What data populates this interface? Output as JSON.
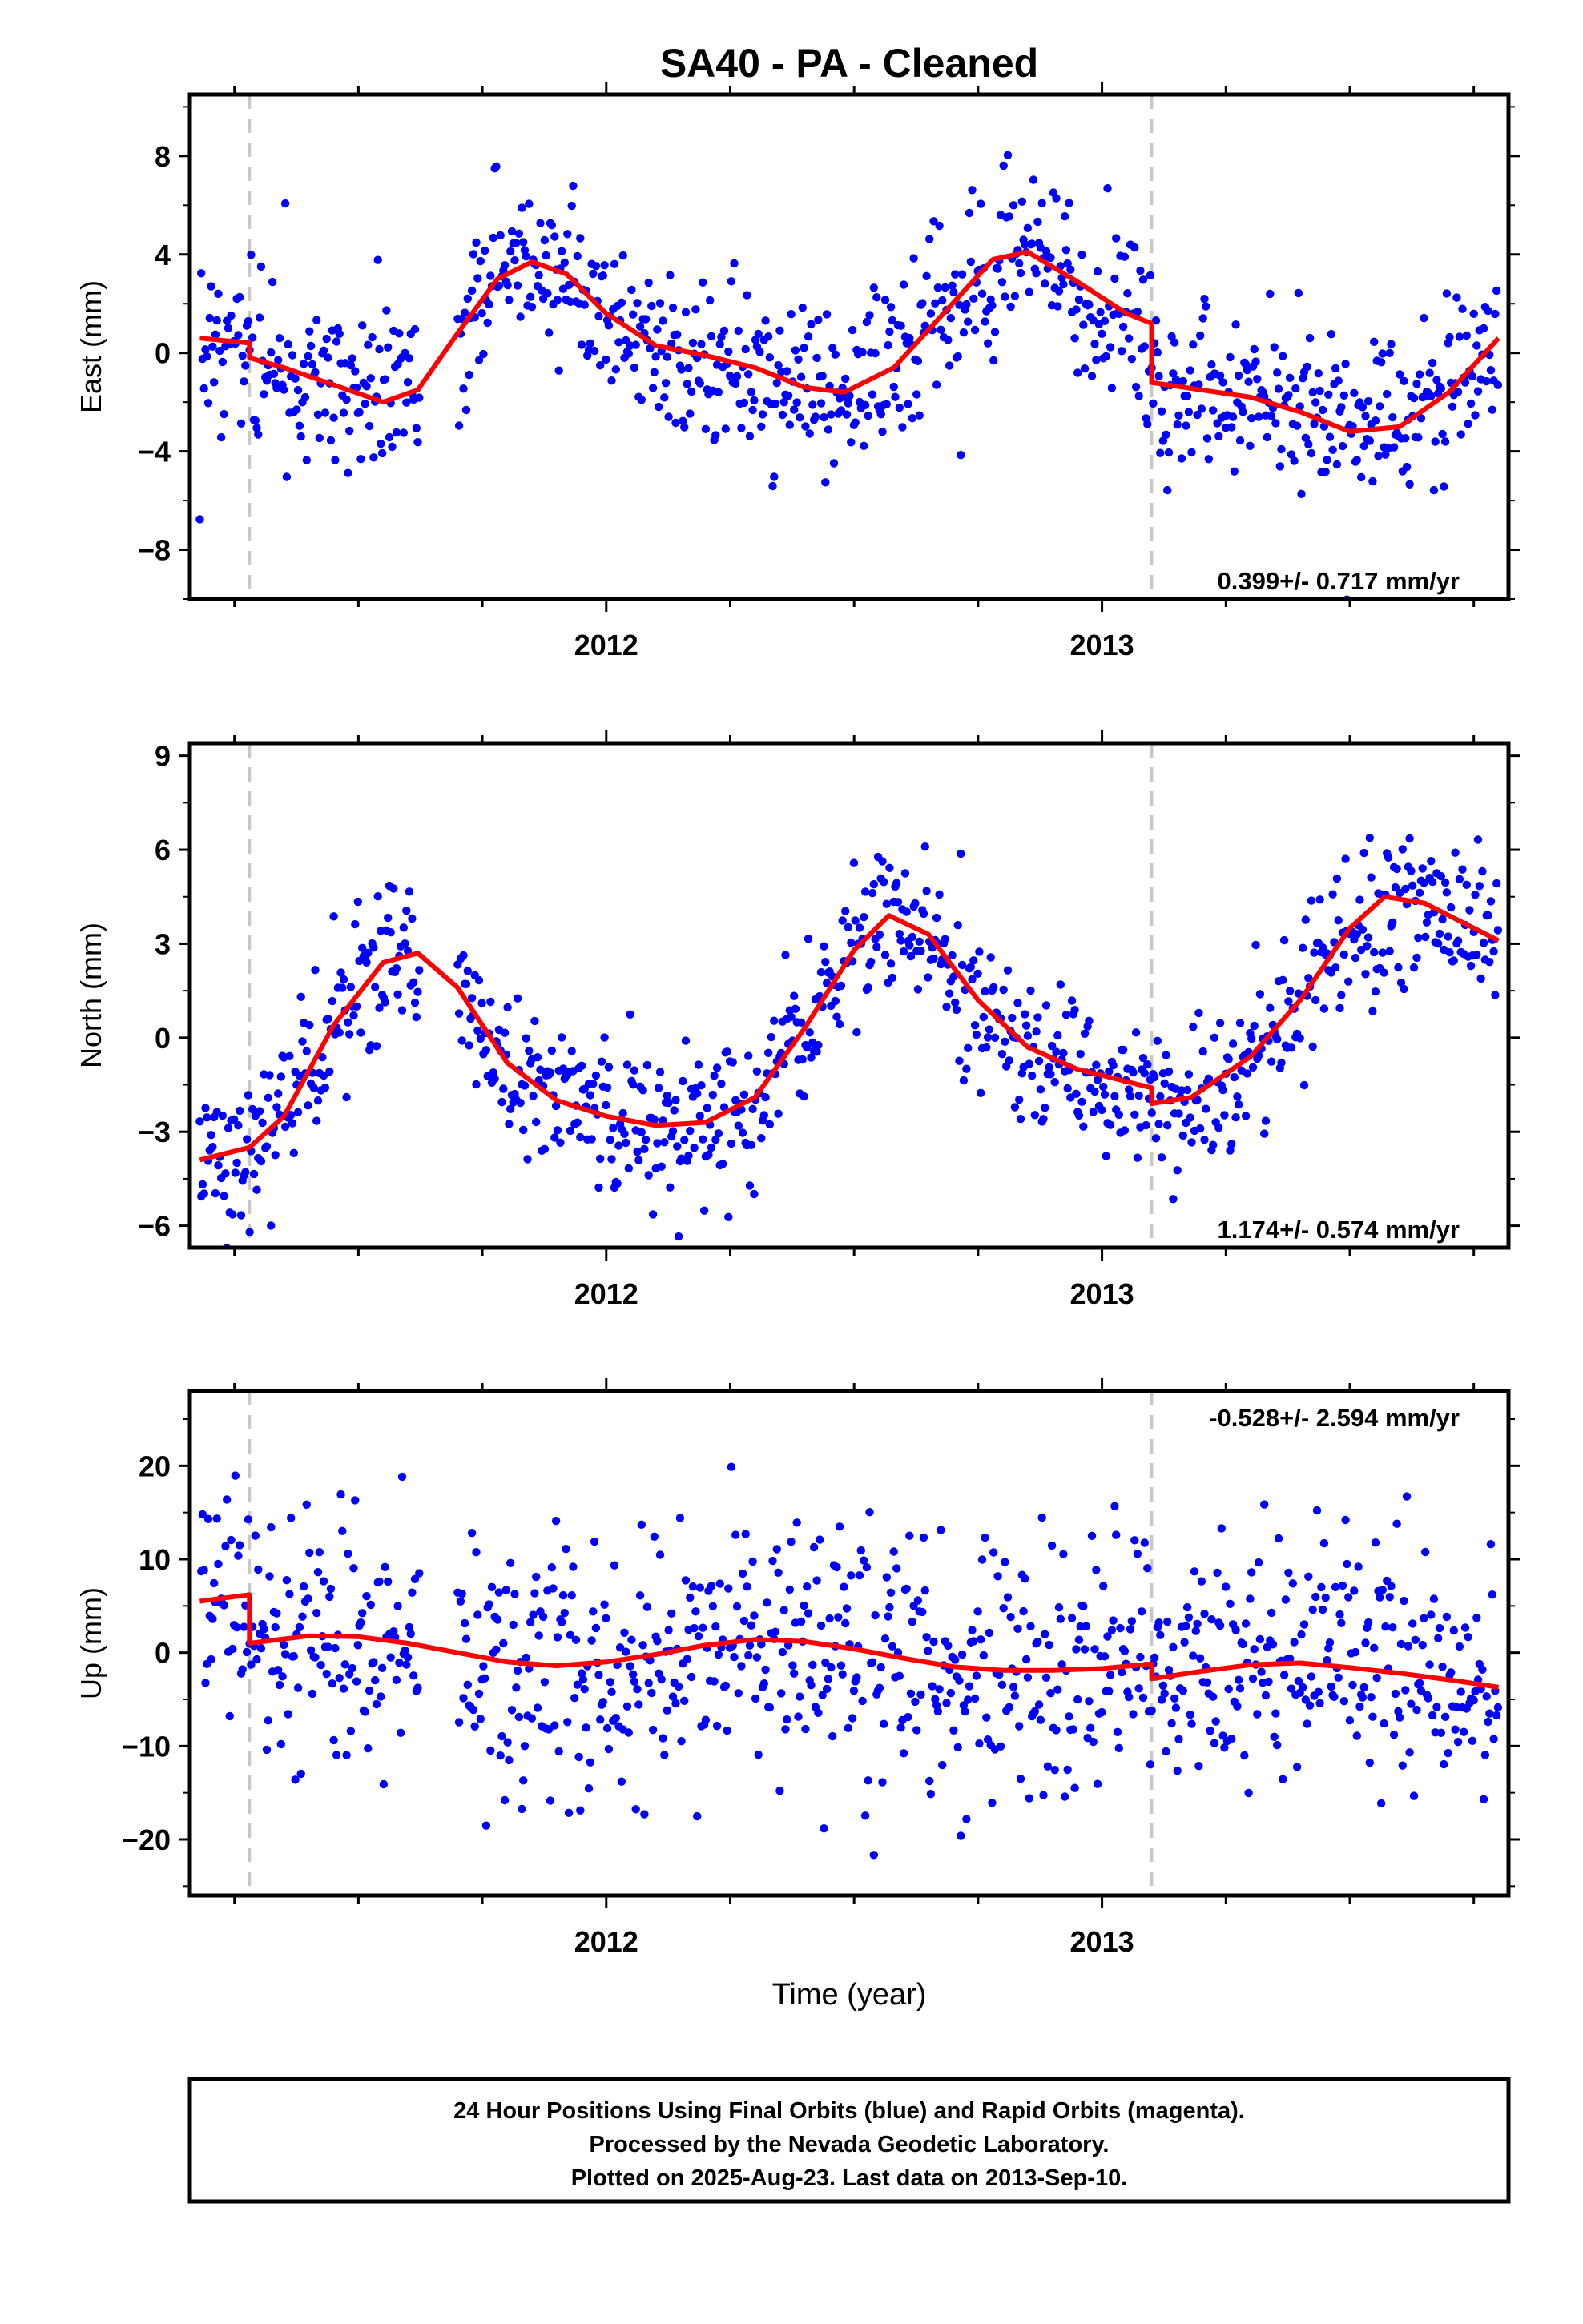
{
  "title": "SA40  - PA - Cleaned",
  "colors": {
    "points": "#0000ff",
    "fit": "#ff0000",
    "break_lines": "#c8c8c8",
    "frame": "#000000"
  },
  "chart_data": [
    {
      "type": "scatter",
      "component": "east",
      "ylabel": "East (mm)",
      "xlabel": "",
      "ylim": [
        -10,
        10.5
      ],
      "yticks": [
        -8,
        -4,
        0,
        4,
        8
      ],
      "xlim": [
        2011.16,
        2013.82
      ],
      "xticks": [
        2012,
        2013
      ],
      "rate_label": "0.399+/- 0.717 mm/yr",
      "rate_position": "bottom-right",
      "breaks": [
        2011.28,
        2013.1
      ],
      "seasonal_amp": 2.9,
      "seasonal_phase": -0.0,
      "trend_mm_per_yr": 0.399,
      "offset_mm": -1.6,
      "scatter_sigma": 1.8,
      "fit": {
        "x": [
          2011.18,
          2011.28,
          2011.28,
          2011.35,
          2011.45,
          2011.55,
          2011.62,
          2011.7,
          2011.78,
          2011.85,
          2011.92,
          2012.0,
          2012.1,
          2012.2,
          2012.3,
          2012.4,
          2012.48,
          2012.58,
          2012.68,
          2012.78,
          2012.85,
          2012.95,
          2013.05,
          2013.1,
          2013.1,
          2013.2,
          2013.3,
          2013.4,
          2013.5,
          2013.6,
          2013.7,
          2013.8
        ],
        "y": [
          0.6,
          0.4,
          -0.2,
          -0.6,
          -1.3,
          -2.0,
          -1.5,
          0.8,
          3.0,
          3.7,
          3.2,
          1.6,
          0.3,
          -0.1,
          -0.6,
          -1.4,
          -1.6,
          -0.6,
          1.6,
          3.8,
          4.1,
          2.9,
          1.6,
          1.2,
          -1.2,
          -1.5,
          -1.8,
          -2.4,
          -3.2,
          -3.0,
          -1.6,
          0.6
        ]
      }
    },
    {
      "type": "scatter",
      "component": "north",
      "ylabel": "North (mm)",
      "xlabel": "",
      "ylim": [
        -6.7,
        9.4
      ],
      "yticks": [
        -6,
        -3,
        0,
        3,
        6,
        9
      ],
      "xlim": [
        2011.16,
        2013.82
      ],
      "xticks": [
        2012,
        2013
      ],
      "rate_label": "1.174+/- 0.574 mm/yr",
      "rate_position": "bottom-right",
      "breaks": [
        2011.28,
        2013.1
      ],
      "seasonal_amp": 3.3,
      "seasonal_phase": 0.35,
      "trend_mm_per_yr": 1.174,
      "offset_mm": -1.5,
      "scatter_sigma": 1.2,
      "fit": {
        "x": [
          2011.18,
          2011.28,
          2011.35,
          2011.45,
          2011.55,
          2011.62,
          2011.7,
          2011.8,
          2011.9,
          2012.0,
          2012.1,
          2012.2,
          2012.3,
          2012.4,
          2012.5,
          2012.57,
          2012.65,
          2012.75,
          2012.85,
          2012.95,
          2013.05,
          2013.1,
          2013.1,
          2013.18,
          2013.3,
          2013.4,
          2013.5,
          2013.57,
          2013.65,
          2013.8
        ],
        "y": [
          -3.9,
          -3.5,
          -2.5,
          0.4,
          2.4,
          2.7,
          1.6,
          -0.8,
          -2.0,
          -2.5,
          -2.8,
          -2.7,
          -1.9,
          0.3,
          2.8,
          3.9,
          3.3,
          1.2,
          -0.3,
          -1.0,
          -1.4,
          -1.6,
          -2.1,
          -1.9,
          -0.6,
          1.2,
          3.5,
          4.5,
          4.3,
          3.1
        ]
      }
    },
    {
      "type": "scatter",
      "component": "up",
      "ylabel": "Up (mm)",
      "xlabel": "Time (year)",
      "ylim": [
        -26,
        28
      ],
      "yticks": [
        -20,
        -10,
        0,
        10,
        20
      ],
      "xlim": [
        2011.16,
        2013.82
      ],
      "xticks": [
        2012,
        2013
      ],
      "rate_label": "-0.528+/- 2.594 mm/yr",
      "rate_position": "top-right",
      "breaks": [
        2011.28,
        2013.1
      ],
      "seasonal_amp": 1.6,
      "seasonal_phase": 0.1,
      "trend_mm_per_yr": -0.528,
      "offset_mm": 0.0,
      "scatter_sigma": 7.0,
      "fit": {
        "x": [
          2011.18,
          2011.28,
          2011.28,
          2011.4,
          2011.5,
          2011.6,
          2011.7,
          2011.8,
          2011.9,
          2012.0,
          2012.1,
          2012.2,
          2012.3,
          2012.4,
          2012.5,
          2012.6,
          2012.7,
          2012.8,
          2012.9,
          2013.0,
          2013.1,
          2013.1,
          2013.2,
          2013.3,
          2013.4,
          2013.5,
          2013.6,
          2013.7,
          2013.8
        ],
        "y": [
          5.5,
          6.2,
          1.0,
          1.8,
          1.7,
          1.0,
          0.0,
          -1.0,
          -1.4,
          -1.0,
          -0.2,
          0.8,
          1.4,
          1.2,
          0.4,
          -0.6,
          -1.5,
          -1.9,
          -1.9,
          -1.7,
          -1.2,
          -2.8,
          -2.0,
          -1.3,
          -1.1,
          -1.6,
          -2.2,
          -2.9,
          -3.7
        ]
      }
    }
  ],
  "footer": {
    "line1": "24 Hour Positions Using Final Orbits (blue) and Rapid Orbits (magenta).",
    "line2": "Processed by the Nevada Geodetic Laboratory.",
    "line3": "Plotted on 2025-Aug-23. Last data on 2013-Sep-10."
  }
}
